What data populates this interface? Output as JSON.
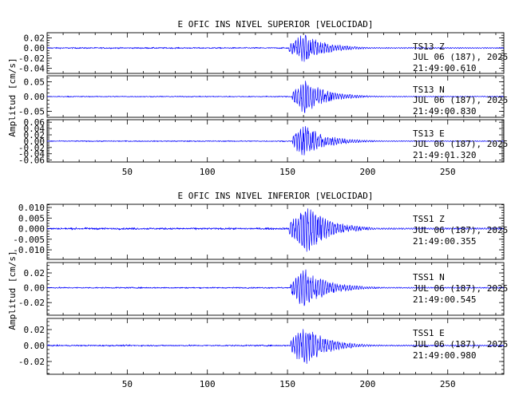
{
  "colors": {
    "trace": "#0000ff",
    "axis": "#000000",
    "background": "#ffffff"
  },
  "chart_data": [
    {
      "type": "line",
      "title": "E OFIC INS NIVEL SUPERIOR [VELOCIDAD]",
      "ylabel": "Amplitud [cm/s]",
      "xlabel": "",
      "x_ticks": [
        50,
        100,
        150,
        200,
        250
      ],
      "xlim": [
        0,
        285
      ],
      "grid": false,
      "legend": "none",
      "panels": [
        {
          "station": "TS13",
          "component": "Z",
          "date": "JUL 06 (187), 2025",
          "time": "21:49:00.610",
          "ylim": [
            -0.05,
            0.03
          ],
          "yticks": [
            0.02,
            0.0,
            -0.02,
            -0.04
          ],
          "ytick_labels": [
            "0.02",
            "0.00",
            "-0.02",
            "-0.04"
          ],
          "event_onset": 151,
          "peak_time": 160,
          "peak_amplitude": 0.03,
          "noise_level": 0.0012
        },
        {
          "station": "TS13",
          "component": "N",
          "date": "JUL 06 (187), 2025",
          "time": "21:49:00.830",
          "ylim": [
            -0.07,
            0.07
          ],
          "yticks": [
            0.05,
            0.0,
            -0.05
          ],
          "ytick_labels": [
            "0.05",
            "0.00",
            "-0.05"
          ],
          "event_onset": 153,
          "peak_time": 160,
          "peak_amplitude": 0.06,
          "noise_level": 0.0015
        },
        {
          "station": "TS13",
          "component": "E",
          "date": "JUL 06 (187), 2025",
          "time": "21:49:01.320",
          "ylim": [
            -0.066,
            0.068
          ],
          "yticks": [
            0.06,
            0.04,
            0.02,
            0.0,
            -0.02,
            -0.04,
            -0.06
          ],
          "ytick_labels": [
            "0.06",
            "0.04",
            "0.02",
            "0.00",
            "-0.02",
            "-0.04",
            "-0.06"
          ],
          "event_onset": 153,
          "peak_time": 160,
          "peak_amplitude": 0.055,
          "noise_level": 0.0015
        }
      ]
    },
    {
      "type": "line",
      "title": "E OFIC INS NIVEL INFERIOR [VELOCIDAD]",
      "ylabel": "Amplitud [cm/s]",
      "xlabel": "",
      "x_ticks": [
        50,
        100,
        150,
        200,
        250
      ],
      "xlim": [
        0,
        285
      ],
      "grid": false,
      "legend": "none",
      "panels": [
        {
          "station": "TSS1",
          "component": "Z",
          "date": "JUL 06 (187), 2025",
          "time": "21:49:00.355",
          "ylim": [
            -0.0145,
            0.0115
          ],
          "yticks": [
            0.01,
            0.005,
            0.0,
            -0.005,
            -0.01
          ],
          "ytick_labels": [
            "0.010",
            "0.005",
            "0.000",
            "-0.005",
            "-0.010"
          ],
          "event_onset": 151,
          "peak_time": 162,
          "peak_amplitude": 0.012,
          "noise_level": 0.0004
        },
        {
          "station": "TSS1",
          "component": "N",
          "date": "JUL 06 (187), 2025",
          "time": "21:49:00.545",
          "ylim": [
            -0.037,
            0.034
          ],
          "yticks": [
            0.02,
            0.0,
            -0.02
          ],
          "ytick_labels": [
            "0.02",
            "0.00",
            "-0.02"
          ],
          "event_onset": 152,
          "peak_time": 160,
          "peak_amplitude": 0.03,
          "noise_level": 0.0008
        },
        {
          "station": "TSS1",
          "component": "E",
          "date": "JUL 06 (187), 2025",
          "time": "21:49:00.980",
          "ylim": [
            -0.036,
            0.034
          ],
          "yticks": [
            0.02,
            0.0,
            -0.02
          ],
          "ytick_labels": [
            "0.02",
            "0.00",
            "-0.02"
          ],
          "event_onset": 152,
          "peak_time": 160,
          "peak_amplitude": 0.028,
          "noise_level": 0.0008
        }
      ]
    }
  ]
}
